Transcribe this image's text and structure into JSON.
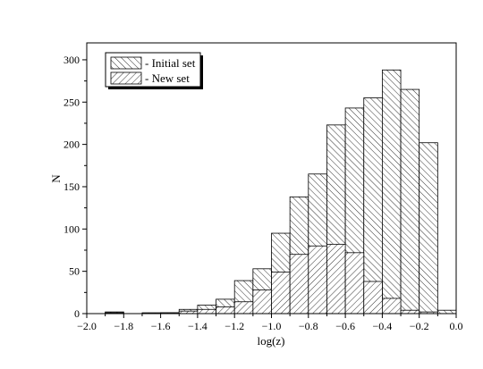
{
  "chart_data": {
    "type": "bar",
    "title": "",
    "xlabel": "log(z)",
    "ylabel": "N",
    "xlim": [
      -2.0,
      0.0
    ],
    "ylim": [
      0,
      320
    ],
    "bin_width": 0.1,
    "x_ticks": [
      "−2.0",
      "−1.8",
      "−1.6",
      "−1.4",
      "−1.2",
      "−1.0",
      "−0.8",
      "−0.6",
      "−0.4",
      "−0.2",
      "0.0"
    ],
    "y_ticks": [
      "0",
      "50",
      "100",
      "150",
      "200",
      "250",
      "300"
    ],
    "x_tick_values": [
      -2.0,
      -1.8,
      -1.6,
      -1.4,
      -1.2,
      -1.0,
      -0.8,
      -0.6,
      -0.4,
      -0.2,
      0.0
    ],
    "y_tick_values": [
      0,
      50,
      100,
      150,
      200,
      250,
      300
    ],
    "grid": false,
    "legend_position": "top-left",
    "series": [
      {
        "name": "- Initial set",
        "hatch": "backslash",
        "bins": [
          {
            "x0": -1.9,
            "value": 2
          },
          {
            "x0": -1.6,
            "value": 1
          },
          {
            "x0": -1.5,
            "value": 5
          },
          {
            "x0": -1.4,
            "value": 10
          },
          {
            "x0": -1.3,
            "value": 17
          },
          {
            "x0": -1.2,
            "value": 39
          },
          {
            "x0": -1.1,
            "value": 53
          },
          {
            "x0": -1.0,
            "value": 95
          },
          {
            "x0": -0.9,
            "value": 138
          },
          {
            "x0": -0.8,
            "value": 165
          },
          {
            "x0": -0.7,
            "value": 223
          },
          {
            "x0": -0.6,
            "value": 243
          },
          {
            "x0": -0.5,
            "value": 255
          },
          {
            "x0": -0.4,
            "value": 288
          },
          {
            "x0": -0.3,
            "value": 265
          },
          {
            "x0": -0.2,
            "value": 202
          },
          {
            "x0": -0.1,
            "value": 4
          }
        ]
      },
      {
        "name": "- New set",
        "hatch": "slash",
        "bins": [
          {
            "x0": -1.9,
            "value": 1
          },
          {
            "x0": -1.7,
            "value": 1
          },
          {
            "x0": -1.6,
            "value": 1
          },
          {
            "x0": -1.5,
            "value": 3
          },
          {
            "x0": -1.4,
            "value": 5
          },
          {
            "x0": -1.3,
            "value": 8
          },
          {
            "x0": -1.2,
            "value": 14
          },
          {
            "x0": -1.1,
            "value": 28
          },
          {
            "x0": -1.0,
            "value": 49
          },
          {
            "x0": -0.9,
            "value": 70
          },
          {
            "x0": -0.8,
            "value": 80
          },
          {
            "x0": -0.7,
            "value": 82
          },
          {
            "x0": -0.6,
            "value": 72
          },
          {
            "x0": -0.5,
            "value": 38
          },
          {
            "x0": -0.4,
            "value": 18
          },
          {
            "x0": -0.3,
            "value": 4
          },
          {
            "x0": -0.2,
            "value": 2
          }
        ]
      }
    ]
  }
}
